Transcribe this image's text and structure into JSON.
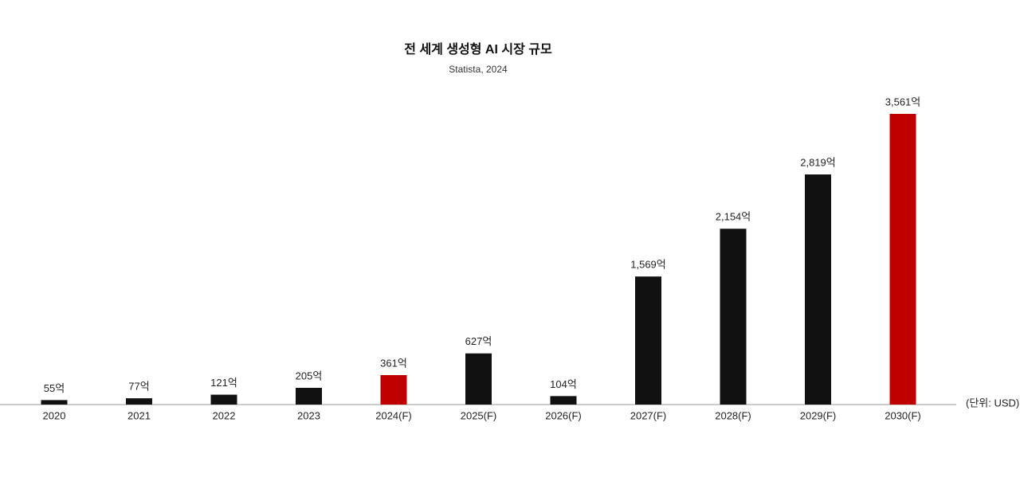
{
  "chart_data": {
    "type": "bar",
    "title": "전 세계 생성형 AI 시장 규모",
    "subtitle": "Statista, 2024",
    "unit_label": "(단위: USD)",
    "categories": [
      "2020",
      "2021",
      "2022",
      "2023",
      "2024(F)",
      "2025(F)",
      "2026(F)",
      "2027(F)",
      "2028(F)",
      "2029(F)",
      "2030(F)"
    ],
    "values": [
      55,
      77,
      121,
      205,
      361,
      627,
      104,
      1569,
      2154,
      2819,
      3561
    ],
    "value_labels": [
      "55억",
      "77억",
      "121억",
      "205억",
      "361억",
      "627억",
      "104억",
      "1,569억",
      "2,154억",
      "2,819억",
      "3,561억"
    ],
    "colors": [
      "#111111",
      "#111111",
      "#111111",
      "#111111",
      "#c00000",
      "#111111",
      "#111111",
      "#111111",
      "#111111",
      "#111111",
      "#c00000"
    ]
  }
}
